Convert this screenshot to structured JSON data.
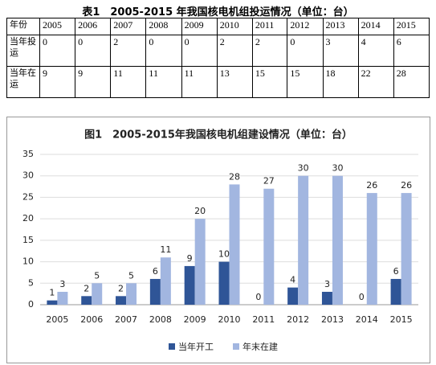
{
  "table": {
    "title": "表1　2005-2015 年我国核电机组投运情况（单位：台）",
    "header": [
      "年份",
      "2005",
      "2006",
      "2007",
      "2008",
      "2009",
      "2010",
      "2011",
      "2012",
      "2013",
      "2014",
      "2015"
    ],
    "rows": [
      {
        "label": "当年投运",
        "values": [
          0,
          0,
          2,
          0,
          0,
          2,
          2,
          0,
          3,
          4,
          6
        ]
      },
      {
        "label": "当年在运",
        "values": [
          9,
          9,
          11,
          11,
          11,
          13,
          15,
          15,
          18,
          22,
          28
        ]
      }
    ]
  },
  "chart_data": {
    "type": "bar",
    "title": "图1　2005-2015年我国核电机组建设情况（单位：台）",
    "categories": [
      "2005",
      "2006",
      "2007",
      "2008",
      "2009",
      "2010",
      "2011",
      "2012",
      "2013",
      "2014",
      "2015"
    ],
    "series": [
      {
        "name": "当年开工",
        "color": "#2f5597",
        "values": [
          1,
          2,
          2,
          6,
          9,
          10,
          0,
          4,
          3,
          0,
          6
        ]
      },
      {
        "name": "年末在建",
        "color": "#a2b6e0",
        "values": [
          3,
          5,
          5,
          11,
          20,
          28,
          27,
          30,
          30,
          26,
          26
        ]
      }
    ],
    "ylim": [
      0,
      35
    ],
    "yticks": [
      0,
      5,
      10,
      15,
      20,
      25,
      30,
      35
    ],
    "grid": true,
    "legend": "bottom"
  }
}
